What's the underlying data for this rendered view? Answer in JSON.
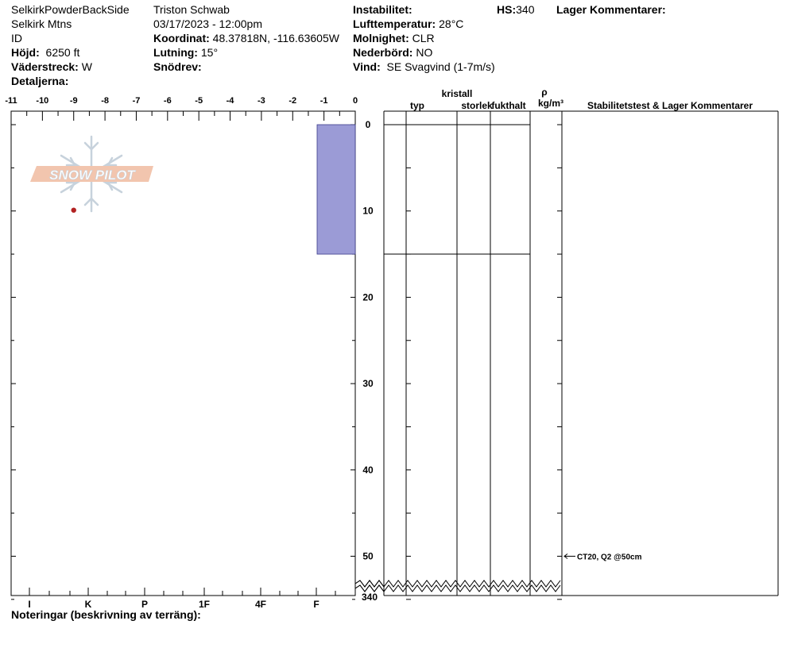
{
  "site": {
    "name": "SelkirkPowderBackSide",
    "range": "Selkirk Mtns",
    "state": "ID",
    "elevation_label": "Höjd:",
    "elevation_value": "6250 ft",
    "aspect_label": "Väderstreck:",
    "aspect_value": "W",
    "details_label": "Detaljerna:"
  },
  "observer": {
    "name": "Triston Schwab",
    "datetime": "03/17/2023 - 12:00pm",
    "coord_label": "Koordinat:",
    "coord_value": "48.37818N, -116.63605W",
    "slope_label": "Lutning:",
    "slope_value": "15°",
    "drift_label": "Snödrev:"
  },
  "conditions": {
    "instability_label": "Instabilitet:",
    "air_temp_label": "Lufttemperatur:",
    "air_temp_value": "28°C",
    "sky_label": "Molnighet:",
    "sky_value": "CLR",
    "precip_label": "Nederbörd:",
    "precip_value": "NO",
    "wind_label": "Vind:",
    "wind_value": "SE Svagvind (1-7m/s)"
  },
  "hs": {
    "label": "HS:",
    "value": "340"
  },
  "layer_comments_label": "Lager Kommentarer:",
  "notes_label": "Noteringar (beskrivning av terräng):",
  "columns": {
    "type": "typ",
    "crystal": "kristall",
    "size": "storlek",
    "moisture": "fukthalt",
    "rho": "ρ",
    "density_unit": "kg/m³",
    "stability": "Stabilitetstest & Lager Kommentarer"
  },
  "logo_text": "SNOW PILOT",
  "colors": {
    "hardness_bar": "#9b9bd6",
    "hardness_bar_stroke": "#3c3c8c",
    "marker": "#b22222",
    "logo_fill": "#f2c5ae",
    "logo_stroke": "#c7d2dc"
  },
  "chart_data": {
    "type": "bar",
    "x_axis": {
      "label": "",
      "ticks": [
        "-11",
        "-10",
        "-9",
        "-8",
        "-7",
        "-6",
        "-5",
        "-4",
        "-3",
        "-2",
        "-1",
        "0"
      ],
      "range": [
        -11,
        0
      ]
    },
    "hardness_axis": {
      "ticks": [
        "I",
        "K",
        "P",
        "1F",
        "4F",
        "F"
      ]
    },
    "depth_axis": {
      "label": "",
      "ticks": [
        "0",
        "10",
        "20",
        "30",
        "40",
        "50"
      ],
      "bottom_label": "340",
      "range_cm": [
        0,
        55
      ],
      "broken_to": 340
    },
    "layers": [
      {
        "top_cm": 0,
        "bottom_cm": 15,
        "hardness": "F"
      }
    ],
    "temperature_points": [
      {
        "temp_c": -9,
        "depth_cm": 10
      }
    ],
    "stability_tests": [
      {
        "depth_cm": 50,
        "text": "CT20, Q2 @50cm"
      }
    ]
  }
}
